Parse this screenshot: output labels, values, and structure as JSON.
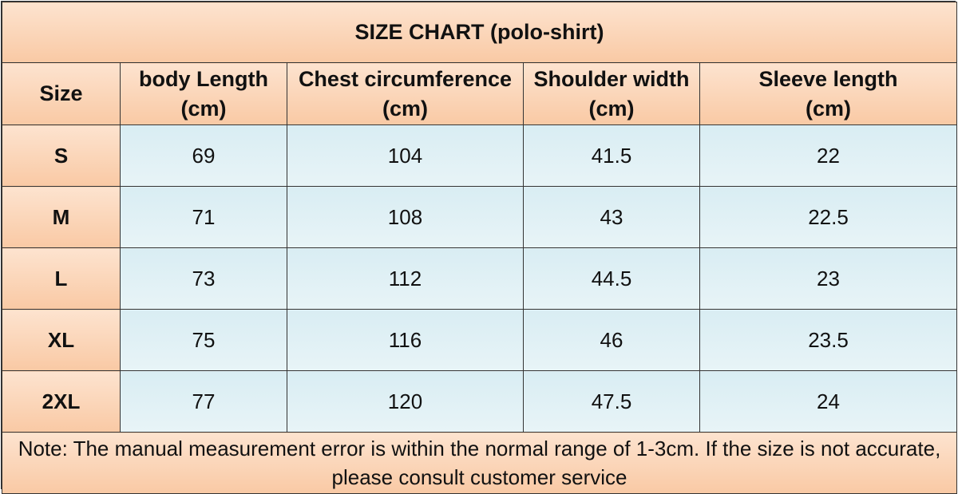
{
  "title": "SIZE CHART  (polo-shirt)",
  "columns": [
    {
      "label": "Size",
      "unit": ""
    },
    {
      "label": "body Length",
      "unit": "(cm)"
    },
    {
      "label": "Chest circumference",
      "unit": "(cm)"
    },
    {
      "label": "Shoulder width",
      "unit": "(cm)"
    },
    {
      "label": "Sleeve length",
      "unit": "(cm)"
    }
  ],
  "rows": [
    {
      "size": "S",
      "body_length": "69",
      "chest": "104",
      "shoulder": "41.5",
      "sleeve": "22"
    },
    {
      "size": "M",
      "body_length": "71",
      "chest": "108",
      "shoulder": "43",
      "sleeve": "22.5"
    },
    {
      "size": "L",
      "body_length": "73",
      "chest": "112",
      "shoulder": "44.5",
      "sleeve": "23"
    },
    {
      "size": "XL",
      "body_length": "75",
      "chest": "116",
      "shoulder": "46",
      "sleeve": "23.5"
    },
    {
      "size": "2XL",
      "body_length": "77",
      "chest": "120",
      "shoulder": "47.5",
      "sleeve": "24"
    }
  ],
  "note": "Note: The manual measurement error is within the normal range of 1-3cm. If the size is not accurate, please consult customer service",
  "colors": {
    "header_bg": "#f9c9a4",
    "cell_bg": "#e3f1f5",
    "border": "#333333"
  }
}
